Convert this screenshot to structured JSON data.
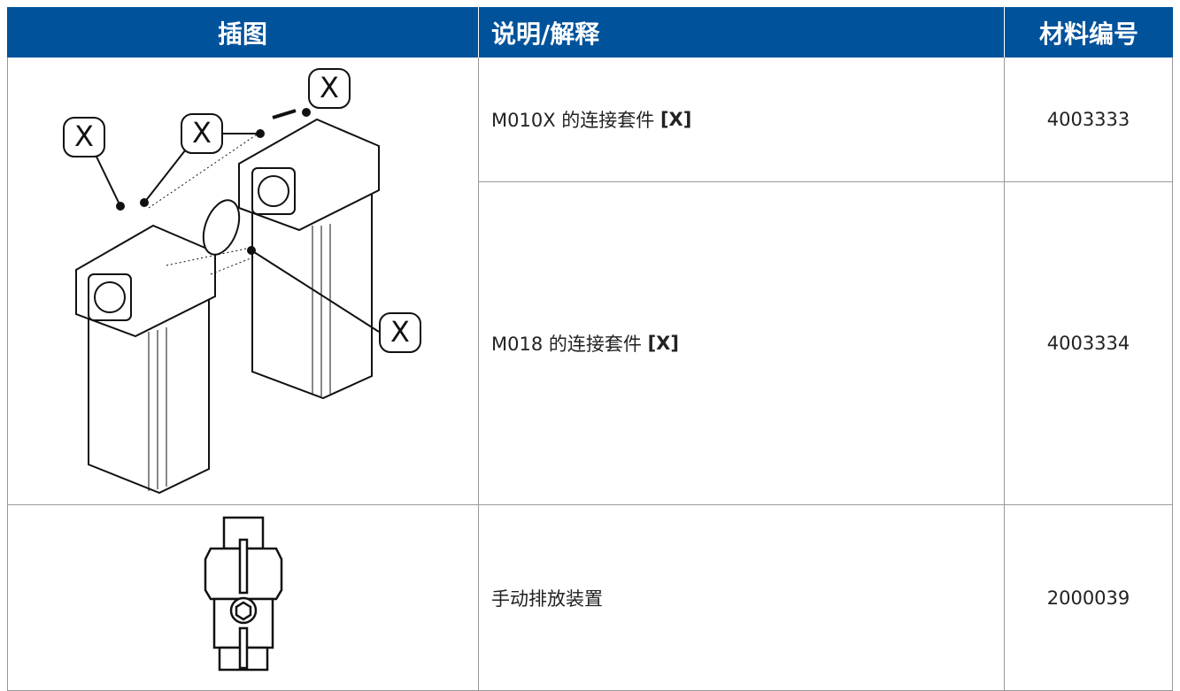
{
  "table": {
    "header": [
      "插图",
      "说明/解释",
      "材料编号"
    ],
    "rows": [
      {
        "description": {
          "text": "M010X 的连接套件",
          "tag": "[X]"
        },
        "number": "4003333"
      },
      {
        "description": {
          "text": "M018 的连接套件",
          "tag": "[X]"
        },
        "number": "4003334"
      },
      {
        "description": {
          "text": "手动排放装置"
        },
        "number": "2000039"
      }
    ],
    "illustration": {
      "callouts": [
        "X",
        "X",
        "X",
        "X"
      ]
    }
  }
}
